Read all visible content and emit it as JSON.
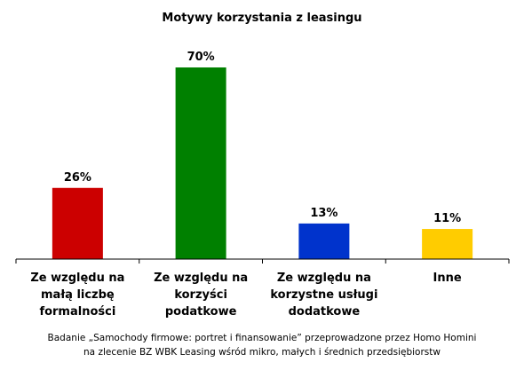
{
  "chart_data": {
    "type": "bar",
    "title": "Motywy korzystania z leasingu",
    "categories": [
      [
        "Ze względu na",
        "małą liczbę",
        "formalności"
      ],
      [
        "Ze względu na",
        "korzyści",
        "podatkowe"
      ],
      [
        "Ze względu na",
        "korzystne usługi",
        "dodatkowe"
      ],
      [
        "Inne"
      ]
    ],
    "values": [
      26,
      70,
      13,
      11
    ],
    "value_labels": [
      "26%",
      "70%",
      "13%",
      "11%"
    ],
    "colors": [
      "#cc0000",
      "#008000",
      "#0033cc",
      "#ffcc00"
    ],
    "ylim": [
      0,
      100
    ],
    "xlabel": "",
    "ylabel": "",
    "grid": false,
    "legend": "none"
  },
  "footnote": [
    "Badanie „Samochody firmowe: portret i finansowanie” przeprowadzone przez Homo Homini",
    "na zlecenie BZ WBK Leasing wśród mikro, małych i średnich przedsiębiorstw"
  ]
}
